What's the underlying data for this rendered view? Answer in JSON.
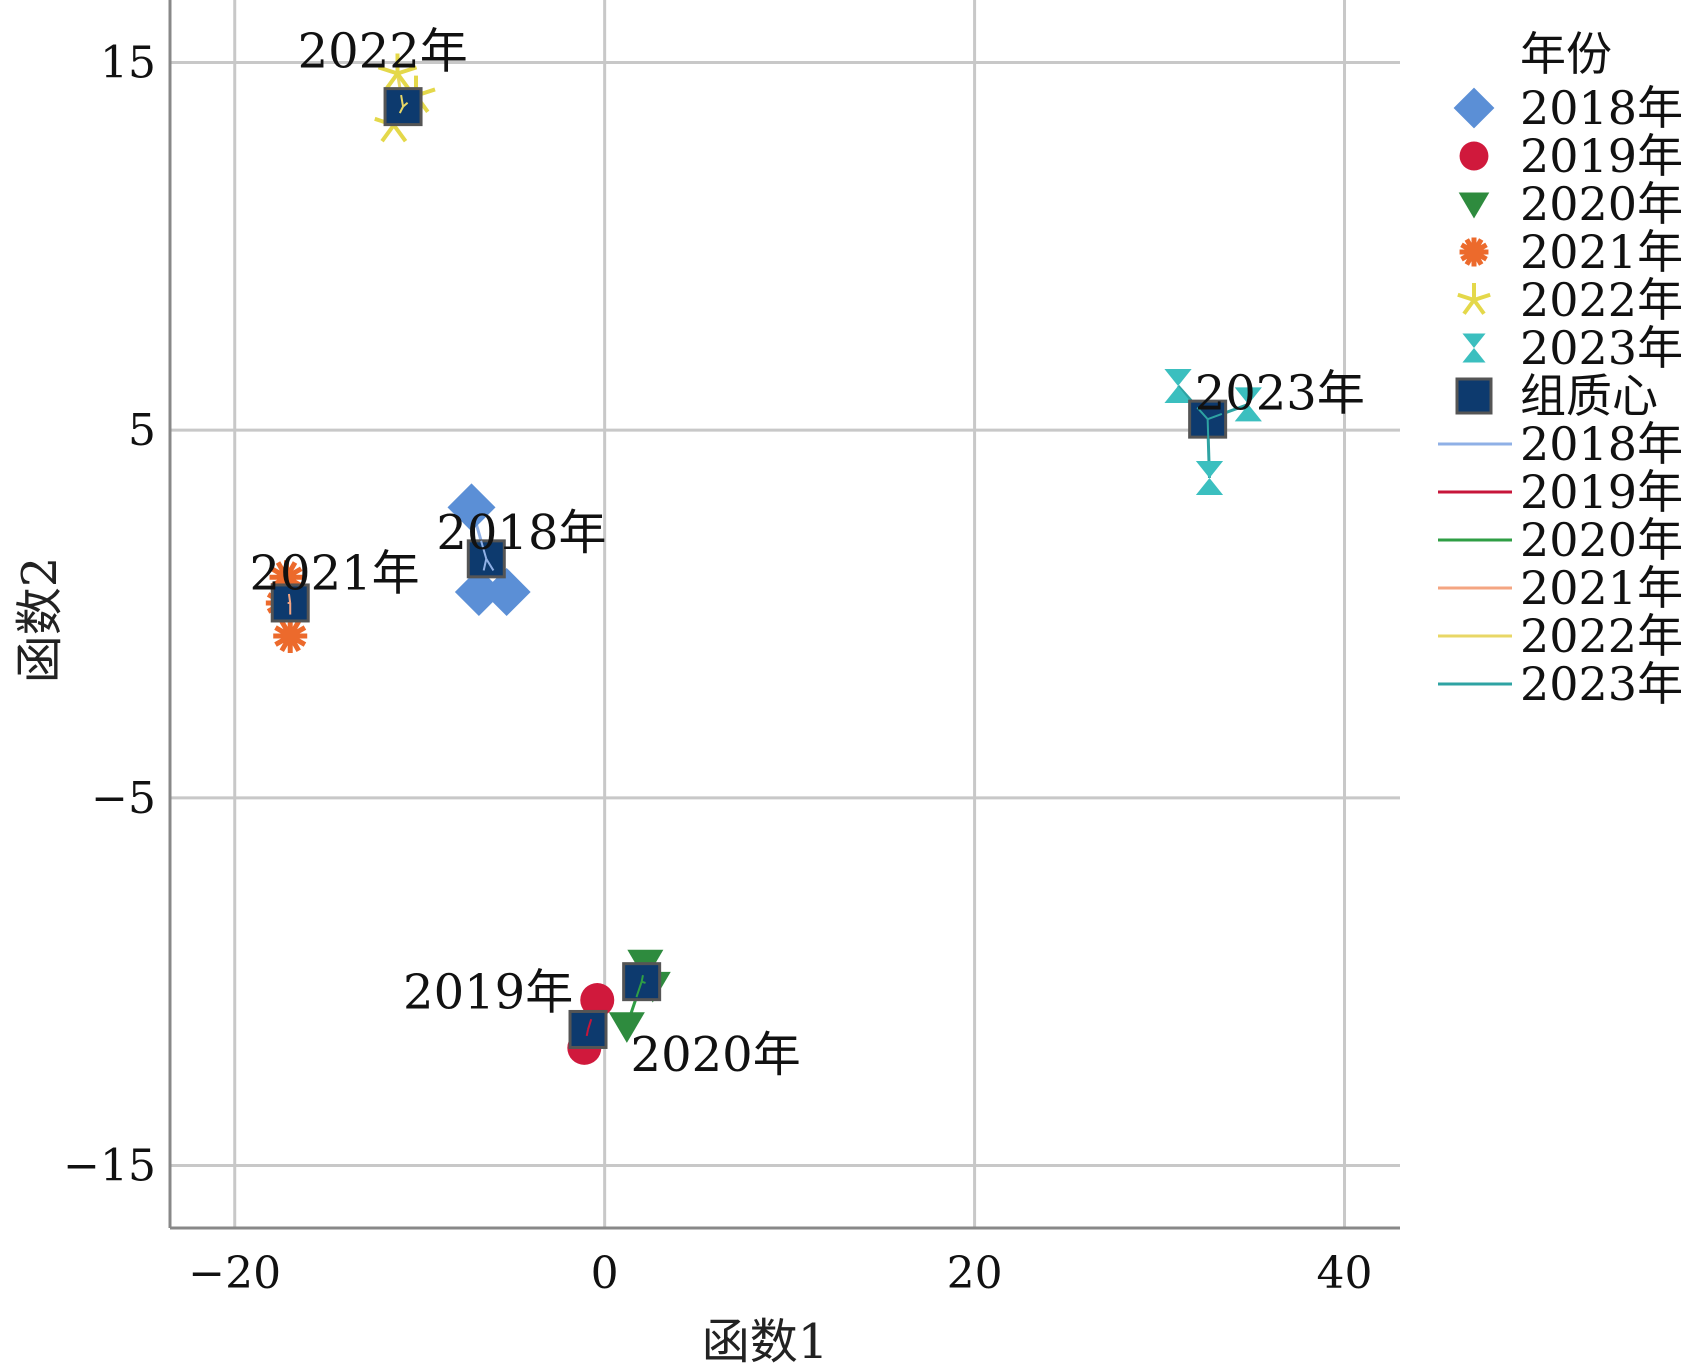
{
  "chart_data": {
    "type": "scatter",
    "xlabel": "函数1",
    "ylabel": "函数2",
    "xlim": [
      -23.5,
      43
    ],
    "ylim": [
      -16.7,
      16.7
    ],
    "xticks": [
      -20,
      0,
      20,
      40
    ],
    "yticks": [
      -15,
      -5,
      5,
      15
    ],
    "grid": true,
    "legend": {
      "title": "年份",
      "placement": "right"
    },
    "series": [
      {
        "name": "2018年",
        "marker": "diamond",
        "color": "#5b8fd6",
        "line_color": "#8fb0e6",
        "points": [
          [
            -7.2,
            2.9
          ],
          [
            -6.8,
            0.6
          ],
          [
            -5.3,
            0.6
          ]
        ],
        "centroid": [
          -6.4,
          1.5
        ]
      },
      {
        "name": "2019年",
        "marker": "circle",
        "color": "#d0193c",
        "line_color": "#c7163a",
        "points": [
          [
            -0.4,
            -10.5
          ],
          [
            -1.1,
            -11.8
          ]
        ],
        "centroid": [
          -0.9,
          -11.3
        ]
      },
      {
        "name": "2020年",
        "marker": "triangle-down",
        "color": "#2e8b3e",
        "line_color": "#2f9e44",
        "points": [
          [
            2.2,
            -9.5
          ],
          [
            1.2,
            -11.2
          ],
          [
            2.6,
            -10.1
          ]
        ],
        "centroid": [
          2.0,
          -10.0
        ]
      },
      {
        "name": "2021年",
        "marker": "asterisk",
        "color": "#ec6a2c",
        "line_color": "#f4a582",
        "points": [
          [
            -17.2,
            1.0
          ],
          [
            -17.0,
            -0.6
          ],
          [
            -17.4,
            0.3
          ]
        ],
        "centroid": [
          -17.0,
          0.3
        ]
      },
      {
        "name": "2022年",
        "marker": "star",
        "color": "#e4d84a",
        "line_color": "#e8d766",
        "points": [
          [
            -11.4,
            13.3
          ],
          [
            -10.2,
            14.1
          ],
          [
            -11.2,
            14.7
          ]
        ],
        "centroid": [
          -10.9,
          13.8
        ]
      },
      {
        "name": "2023年",
        "marker": "hourglass",
        "color": "#3bbfbf",
        "line_color": "#2ea3a3",
        "points": [
          [
            31.0,
            6.2
          ],
          [
            34.8,
            5.7
          ],
          [
            32.7,
            3.7
          ]
        ],
        "centroid": [
          32.6,
          5.3
        ]
      }
    ],
    "centroid_label": "组质心",
    "centroid_color": "#0d3a6e",
    "annotations": [
      {
        "text": "2018年",
        "x": -4.5,
        "y": 2.2
      },
      {
        "text": "2019年",
        "x": -6.3,
        "y": -10.3
      },
      {
        "text": "2020年",
        "x": 6.0,
        "y": -12.0
      },
      {
        "text": "2021年",
        "x": -14.6,
        "y": 1.1
      },
      {
        "text": "2022年",
        "x": -12.0,
        "y": 15.3
      },
      {
        "text": "2023年",
        "x": 36.5,
        "y": 6.0
      }
    ]
  }
}
